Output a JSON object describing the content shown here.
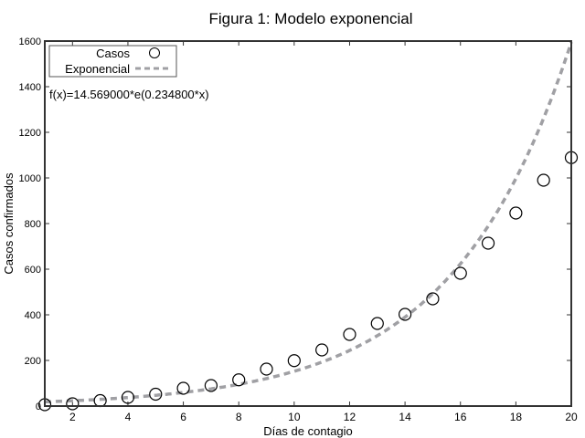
{
  "chart_data": {
    "type": "scatter",
    "title": "Figura 1: Modelo exponencial",
    "xlabel": "Días de contagio",
    "ylabel": "Casos confirmados",
    "xlim": [
      1,
      20
    ],
    "ylim": [
      0,
      1600
    ],
    "xticks": [
      2,
      4,
      6,
      8,
      10,
      12,
      14,
      16,
      18,
      20
    ],
    "yticks": [
      0,
      200,
      400,
      600,
      800,
      1000,
      1200,
      1400,
      1600
    ],
    "grid": false,
    "legend_position": "top-left",
    "annotation": "f(x)=14.569000*e(0.234800*x)",
    "series": [
      {
        "name": "Casos",
        "type": "scatter",
        "marker": "open-circle",
        "color": "#000000",
        "x": [
          1,
          2,
          3,
          4,
          5,
          6,
          7,
          8,
          9,
          10,
          11,
          12,
          13,
          14,
          15,
          16,
          17,
          18,
          19,
          20
        ],
        "y": [
          6,
          10,
          24,
          38,
          52,
          78,
          90,
          115,
          162,
          199,
          246,
          314,
          362,
          402,
          470,
          582,
          714,
          846,
          990,
          1089
        ]
      },
      {
        "name": "Exponencial",
        "type": "line",
        "style": "dashed",
        "color": "#a0a0a4",
        "function": {
          "a": 14.569,
          "b": 0.2348
        }
      }
    ]
  }
}
